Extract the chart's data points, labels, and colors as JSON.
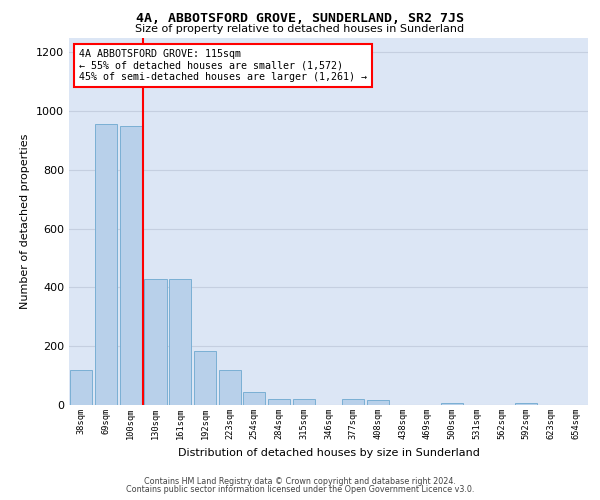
{
  "title": "4A, ABBOTSFORD GROVE, SUNDERLAND, SR2 7JS",
  "subtitle": "Size of property relative to detached houses in Sunderland",
  "xlabel": "Distribution of detached houses by size in Sunderland",
  "ylabel": "Number of detached properties",
  "categories": [
    "38sqm",
    "69sqm",
    "100sqm",
    "130sqm",
    "161sqm",
    "192sqm",
    "223sqm",
    "254sqm",
    "284sqm",
    "315sqm",
    "346sqm",
    "377sqm",
    "408sqm",
    "438sqm",
    "469sqm",
    "500sqm",
    "531sqm",
    "562sqm",
    "592sqm",
    "623sqm",
    "654sqm"
  ],
  "values": [
    120,
    955,
    950,
    430,
    430,
    185,
    120,
    45,
    20,
    20,
    0,
    20,
    18,
    0,
    0,
    8,
    0,
    0,
    8,
    0,
    0
  ],
  "bar_color": "#b8d0ea",
  "bar_edge_color": "#7aafd4",
  "grid_color": "#c5cfe0",
  "background_color": "#dce6f5",
  "property_line_x": 2.5,
  "annotation_line1": "4A ABBOTSFORD GROVE: 115sqm",
  "annotation_line2": "← 55% of detached houses are smaller (1,572)",
  "annotation_line3": "45% of semi-detached houses are larger (1,261) →",
  "ylim": [
    0,
    1250
  ],
  "yticks": [
    0,
    200,
    400,
    600,
    800,
    1000,
    1200
  ],
  "footer_line1": "Contains HM Land Registry data © Crown copyright and database right 2024.",
  "footer_line2": "Contains public sector information licensed under the Open Government Licence v3.0."
}
